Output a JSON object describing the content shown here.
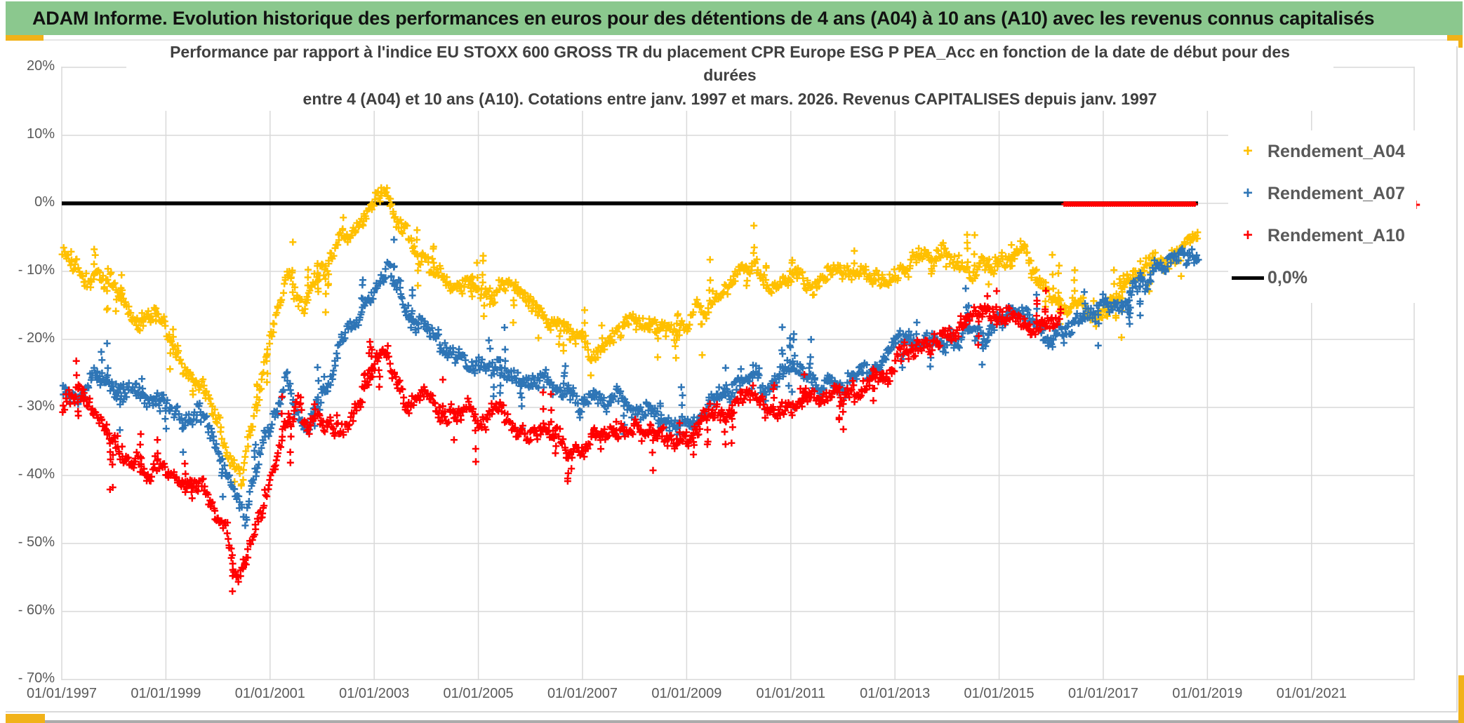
{
  "header": {
    "title": "ADAM Informe. Evolution historique des performances en euros pour des détentions de 4 ans (A04) à 10 ans (A10) avec les revenus connus capitalisés"
  },
  "chart": {
    "title_line1": "Performance par rapport à l'indice EU STOXX 600 GROSS TR  du placement CPR Europe ESG P PEA_Acc en fonction de la date de début pour des",
    "title_line2": "durées",
    "title_line3": "entre 4 (A04) et 10 ans (A10). Cotations entre janv. 1997 et mars. 2026. Revenus CAPITALISES depuis janv. 1997"
  },
  "legend": {
    "items": [
      {
        "label": "Rendement_A04",
        "color": "#FFC000",
        "type": "marker"
      },
      {
        "label": "Rendement_A07",
        "color": "#2E75B6",
        "type": "marker"
      },
      {
        "label": "Rendement_A10",
        "color": "#FF0000",
        "type": "marker"
      },
      {
        "label": "0,0%",
        "color": "#000000",
        "type": "line"
      }
    ]
  },
  "axes": {
    "y_tick_labels": [
      "20%",
      "10%",
      "0%",
      "- 10%",
      "- 20%",
      "- 30%",
      "- 40%",
      "- 50%",
      "- 60%",
      "- 70%"
    ],
    "x_tick_labels": [
      "01/01/1997",
      "01/01/1999",
      "01/01/2001",
      "01/01/2003",
      "01/01/2005",
      "01/01/2007",
      "01/01/2009",
      "01/01/2011",
      "01/01/2013",
      "01/01/2015",
      "01/01/2017",
      "01/01/2019",
      "01/01/2021"
    ]
  },
  "colors": {
    "header_green": "#8BC88E",
    "accent_orange": "#F1B219",
    "grid": "#D9D9D9",
    "axis_text": "#595959",
    "title_text": "#404040",
    "series_a04": "#FFC000",
    "series_a07": "#2E75B6",
    "series_a10": "#FF0000",
    "zero_line": "#000000"
  },
  "chart_data": {
    "type": "scatter",
    "marker": "plus-cross",
    "x_axis": {
      "unit": "date de début",
      "range_years": [
        1997.0,
        2023.0
      ],
      "tick_step_years": 2,
      "grid": true
    },
    "y_axis": {
      "unit": "percent",
      "ylim": [
        -70,
        20
      ],
      "tick_step": 10,
      "grid": true
    },
    "legend_position": "right-inside",
    "zero_line": {
      "label": "0,0%",
      "value": 0,
      "span_years": [
        1997.0,
        2018.82
      ]
    },
    "series": [
      {
        "name": "Rendement_A04",
        "color": "#FFC000",
        "start_year": 1997.0,
        "end_year": 2018.82,
        "waypoints": [
          [
            1997,
            -7
          ],
          [
            1997.3,
            -10
          ],
          [
            1997.6,
            -12.5
          ],
          [
            1997.9,
            -11.5
          ],
          [
            1998.2,
            -15
          ],
          [
            1998.5,
            -17
          ],
          [
            1998.8,
            -15.5
          ],
          [
            1999.1,
            -20
          ],
          [
            1999.35,
            -23
          ],
          [
            1999.6,
            -25.5
          ],
          [
            1999.9,
            -31
          ],
          [
            2000.1,
            -34
          ],
          [
            2000.3,
            -38
          ],
          [
            2000.45,
            -42
          ],
          [
            2000.6,
            -35
          ],
          [
            2000.8,
            -27
          ],
          [
            2001,
            -19
          ],
          [
            2001.2,
            -13
          ],
          [
            2001.35,
            -10
          ],
          [
            2001.5,
            -13
          ],
          [
            2001.65,
            -15.5
          ],
          [
            2001.8,
            -11
          ],
          [
            2002,
            -8
          ],
          [
            2002.2,
            -5.5
          ],
          [
            2002.45,
            -3
          ],
          [
            2002.7,
            -1.5
          ],
          [
            2002.9,
            -0.5
          ],
          [
            2003.05,
            1.5
          ],
          [
            2003.15,
            3.5
          ],
          [
            2003.3,
            0
          ],
          [
            2003.45,
            -2.5
          ],
          [
            2003.65,
            -5
          ],
          [
            2003.85,
            -7
          ],
          [
            2004.1,
            -8.5
          ],
          [
            2004.4,
            -10
          ],
          [
            2004.7,
            -12
          ],
          [
            2005,
            -13
          ],
          [
            2005.3,
            -14
          ],
          [
            2005.6,
            -13.5
          ],
          [
            2005.9,
            -15.5
          ],
          [
            2006.2,
            -17
          ],
          [
            2006.5,
            -18
          ],
          [
            2006.8,
            -19.5
          ],
          [
            2007.1,
            -21
          ],
          [
            2007.35,
            -21.5
          ],
          [
            2007.6,
            -19.5
          ],
          [
            2007.9,
            -17.5
          ],
          [
            2008.2,
            -18.5
          ],
          [
            2008.5,
            -17
          ],
          [
            2008.8,
            -18
          ],
          [
            2009.1,
            -16
          ],
          [
            2009.4,
            -14.5
          ],
          [
            2009.7,
            -13
          ],
          [
            2010,
            -11.5
          ],
          [
            2010.3,
            -10.5
          ],
          [
            2010.6,
            -11.5
          ],
          [
            2010.9,
            -10.5
          ],
          [
            2011.2,
            -11.5
          ],
          [
            2011.5,
            -12.5
          ],
          [
            2011.8,
            -11
          ],
          [
            2012.1,
            -10
          ],
          [
            2012.4,
            -9.5
          ],
          [
            2012.7,
            -10.5
          ],
          [
            2013,
            -9.5
          ],
          [
            2013.3,
            -8.5
          ],
          [
            2013.6,
            -9
          ],
          [
            2013.9,
            -8.5
          ],
          [
            2014.2,
            -9.5
          ],
          [
            2014.5,
            -10.5
          ],
          [
            2014.8,
            -9.5
          ],
          [
            2015.1,
            -8.5
          ],
          [
            2015.4,
            -8
          ],
          [
            2015.7,
            -10
          ],
          [
            2016,
            -12.5
          ],
          [
            2016.3,
            -14.5
          ],
          [
            2016.6,
            -16.5
          ],
          [
            2016.9,
            -18
          ],
          [
            2017.1,
            -15
          ],
          [
            2017.3,
            -12.5
          ],
          [
            2017.5,
            -11
          ],
          [
            2017.7,
            -9.5
          ],
          [
            2017.9,
            -8.5
          ],
          [
            2018.1,
            -8
          ],
          [
            2018.35,
            -7
          ],
          [
            2018.6,
            -6
          ],
          [
            2018.82,
            -5
          ]
        ]
      },
      {
        "name": "Rendement_A07",
        "color": "#2E75B6",
        "start_year": 1997.0,
        "end_year": 2018.82,
        "waypoints": [
          [
            1997,
            -27
          ],
          [
            1997.3,
            -28
          ],
          [
            1997.6,
            -26.5
          ],
          [
            1997.9,
            -25
          ],
          [
            1998.2,
            -27
          ],
          [
            1998.5,
            -25.5
          ],
          [
            1998.8,
            -28
          ],
          [
            1999.1,
            -30
          ],
          [
            1999.35,
            -32
          ],
          [
            1999.6,
            -30.5
          ],
          [
            1999.9,
            -34
          ],
          [
            2000.1,
            -38
          ],
          [
            2000.3,
            -43
          ],
          [
            2000.5,
            -46.5
          ],
          [
            2000.7,
            -41
          ],
          [
            2000.9,
            -35
          ],
          [
            2001.1,
            -30
          ],
          [
            2001.3,
            -27
          ],
          [
            2001.5,
            -30
          ],
          [
            2001.7,
            -32
          ],
          [
            2001.9,
            -29
          ],
          [
            2002.1,
            -26
          ],
          [
            2002.3,
            -23
          ],
          [
            2002.5,
            -20
          ],
          [
            2002.7,
            -17
          ],
          [
            2002.9,
            -14
          ],
          [
            2003.1,
            -10.5
          ],
          [
            2003.25,
            -9.5
          ],
          [
            2003.4,
            -13
          ],
          [
            2003.6,
            -16
          ],
          [
            2003.8,
            -18
          ],
          [
            2004,
            -19.5
          ],
          [
            2004.3,
            -21
          ],
          [
            2004.6,
            -22
          ],
          [
            2004.9,
            -23.5
          ],
          [
            2005.2,
            -24
          ],
          [
            2005.5,
            -25
          ],
          [
            2005.8,
            -26
          ],
          [
            2006.1,
            -26.5
          ],
          [
            2006.4,
            -27.5
          ],
          [
            2006.7,
            -28
          ],
          [
            2007,
            -28.5
          ],
          [
            2007.3,
            -28
          ],
          [
            2007.6,
            -29
          ],
          [
            2007.9,
            -30
          ],
          [
            2008.2,
            -30.5
          ],
          [
            2008.5,
            -31.5
          ],
          [
            2008.8,
            -32
          ],
          [
            2009.1,
            -30.5
          ],
          [
            2009.4,
            -29
          ],
          [
            2009.7,
            -28
          ],
          [
            2010,
            -27
          ],
          [
            2010.3,
            -26
          ],
          [
            2010.6,
            -27.5
          ],
          [
            2010.9,
            -26
          ],
          [
            2011.2,
            -27
          ],
          [
            2011.5,
            -28
          ],
          [
            2011.8,
            -26.5
          ],
          [
            2012.1,
            -25
          ],
          [
            2012.4,
            -24
          ],
          [
            2012.7,
            -23
          ],
          [
            2013,
            -21.5
          ],
          [
            2013.3,
            -20.5
          ],
          [
            2013.6,
            -21
          ],
          [
            2013.9,
            -20
          ],
          [
            2014.2,
            -19.5
          ],
          [
            2014.5,
            -19.5
          ],
          [
            2014.8,
            -18.5
          ],
          [
            2015.1,
            -17.5
          ],
          [
            2015.4,
            -17
          ],
          [
            2015.7,
            -18
          ],
          [
            2016,
            -19
          ],
          [
            2016.3,
            -18
          ],
          [
            2016.6,
            -16.5
          ],
          [
            2016.9,
            -15.5
          ],
          [
            2017.2,
            -14
          ],
          [
            2017.5,
            -12.5
          ],
          [
            2017.8,
            -11
          ],
          [
            2018.1,
            -10
          ],
          [
            2018.4,
            -9
          ],
          [
            2018.6,
            -8.5
          ],
          [
            2018.82,
            -8
          ]
        ]
      },
      {
        "name": "Rendement_A10",
        "color": "#FF0000",
        "start_year": 1997.0,
        "end_year": 2016.2,
        "waypoints": [
          [
            1997,
            -30
          ],
          [
            1997.3,
            -29
          ],
          [
            1997.6,
            -31
          ],
          [
            1997.9,
            -33
          ],
          [
            1998.2,
            -35.5
          ],
          [
            1998.5,
            -37
          ],
          [
            1998.8,
            -38.5
          ],
          [
            1999.1,
            -40.5
          ],
          [
            1999.35,
            -42
          ],
          [
            1999.6,
            -41
          ],
          [
            1999.9,
            -43.5
          ],
          [
            2000.1,
            -47
          ],
          [
            2000.25,
            -51
          ],
          [
            2000.4,
            -54.5
          ],
          [
            2000.55,
            -52
          ],
          [
            2000.7,
            -47
          ],
          [
            2000.9,
            -42
          ],
          [
            2001.1,
            -38
          ],
          [
            2001.3,
            -34
          ],
          [
            2001.5,
            -31
          ],
          [
            2001.7,
            -33
          ],
          [
            2001.9,
            -31.5
          ],
          [
            2002.1,
            -32
          ],
          [
            2002.3,
            -33.5
          ],
          [
            2002.5,
            -32
          ],
          [
            2002.7,
            -30
          ],
          [
            2002.9,
            -27
          ],
          [
            2003.1,
            -24
          ],
          [
            2003.25,
            -22.5
          ],
          [
            2003.4,
            -25
          ],
          [
            2003.6,
            -27
          ],
          [
            2003.8,
            -28.5
          ],
          [
            2004,
            -29.5
          ],
          [
            2004.3,
            -30
          ],
          [
            2004.6,
            -30.5
          ],
          [
            2004.9,
            -31.5
          ],
          [
            2005.2,
            -32
          ],
          [
            2005.5,
            -32.5
          ],
          [
            2005.8,
            -33.5
          ],
          [
            2006.1,
            -33
          ],
          [
            2006.4,
            -34
          ],
          [
            2006.7,
            -35
          ],
          [
            2007,
            -35.5
          ],
          [
            2007.3,
            -34.5
          ],
          [
            2007.6,
            -33.5
          ],
          [
            2007.9,
            -32.5
          ],
          [
            2008.2,
            -33
          ],
          [
            2008.5,
            -34
          ],
          [
            2008.8,
            -35
          ],
          [
            2009.1,
            -33.5
          ],
          [
            2009.4,
            -31.5
          ],
          [
            2009.7,
            -30
          ],
          [
            2010,
            -29.5
          ],
          [
            2010.3,
            -30
          ],
          [
            2010.6,
            -31
          ],
          [
            2010.9,
            -29.5
          ],
          [
            2011.2,
            -30
          ],
          [
            2011.5,
            -30.5
          ],
          [
            2011.8,
            -29
          ],
          [
            2012.1,
            -28
          ],
          [
            2012.4,
            -27
          ],
          [
            2012.7,
            -25.5
          ],
          [
            2013,
            -24
          ],
          [
            2013.3,
            -22.5
          ],
          [
            2013.6,
            -21
          ],
          [
            2013.9,
            -19.5
          ],
          [
            2014.2,
            -18.5
          ],
          [
            2014.5,
            -18
          ],
          [
            2014.8,
            -17.5
          ],
          [
            2015.1,
            -17
          ],
          [
            2015.4,
            -17
          ],
          [
            2015.7,
            -18
          ],
          [
            2016,
            -17
          ],
          [
            2016.2,
            -16
          ]
        ],
        "flat_zero_segment_years": [
          2016.25,
          2018.78
        ],
        "isolated_point": {
          "year": 2023.0,
          "value": 0
        }
      }
    ]
  }
}
